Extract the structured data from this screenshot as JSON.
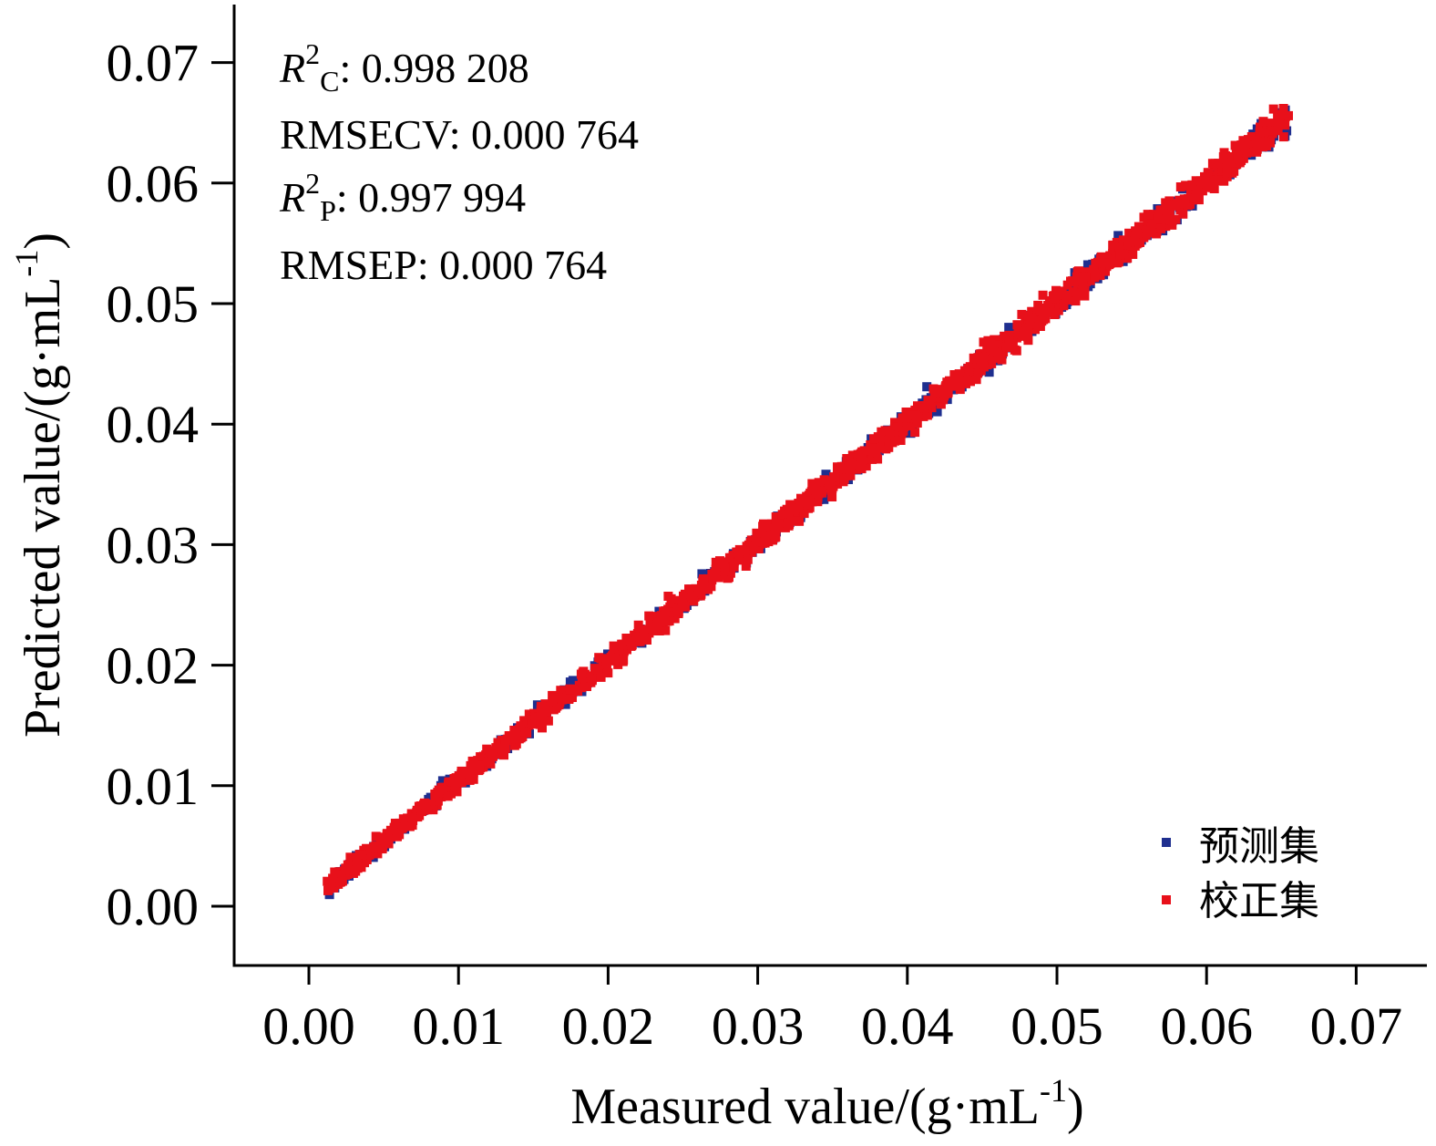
{
  "chart_data": {
    "type": "scatter",
    "title": "",
    "xlabel": {
      "main": "Measured value/(g·mL",
      "sup": "-1",
      "end": ")"
    },
    "ylabel": {
      "main": "Predicted value/(g·mL",
      "sup": "-1",
      "end": ")"
    },
    "xlim": [
      -0.005,
      0.072
    ],
    "ylim": [
      -0.005,
      0.073
    ],
    "xticks": [
      0.0,
      0.01,
      0.02,
      0.03,
      0.04,
      0.05,
      0.06,
      0.07
    ],
    "yticks": [
      0.0,
      0.01,
      0.02,
      0.03,
      0.04,
      0.05,
      0.06,
      0.07
    ],
    "xtick_labels": [
      "0.00",
      "0.01",
      "0.02",
      "0.03",
      "0.04",
      "0.05",
      "0.06",
      "0.07"
    ],
    "ytick_labels": [
      "0.00",
      "0.01",
      "0.02",
      "0.03",
      "0.04",
      "0.05",
      "0.06",
      "0.07"
    ],
    "grid": false,
    "legend_position": "bottom-right",
    "series": [
      {
        "name": "预测集",
        "color": "#1f2f8f",
        "x_range": [
          0.0012,
          0.0655
        ],
        "slope": 0.995,
        "intercept": 0.0004,
        "approx_points": 500
      },
      {
        "name": "校正集",
        "color": "#e8101a",
        "x_range": [
          0.0012,
          0.0655
        ],
        "slope": 0.995,
        "intercept": 0.0004,
        "approx_points": 1500
      }
    ],
    "annotations": [
      {
        "label": "R",
        "sup": "2",
        "sub": "C",
        "value": ": 0.998 208"
      },
      {
        "label": "RMSECV",
        "value": ": 0.000 764"
      },
      {
        "label": "R",
        "sup": "2",
        "sub": "P",
        "value": ": 0.997 994"
      },
      {
        "label": "RMSEP",
        "value": ": 0.000 764"
      }
    ]
  }
}
